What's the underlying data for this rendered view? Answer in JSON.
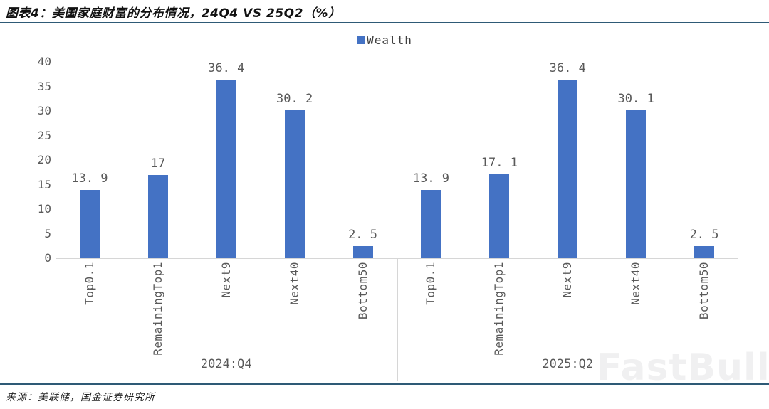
{
  "header": {
    "title": "图表4：美国家庭财富的分布情况，24Q4 VS 25Q2（%）"
  },
  "chart_data": {
    "type": "bar",
    "title": "图表4：美国家庭财富的分布情况，24Q4 VS 25Q2（%）",
    "legend": [
      "Wealth"
    ],
    "legend_position": "top-center",
    "bar_color": "#4472C4",
    "categories": [
      "Top0.1",
      "RemainingTop1",
      "Next9",
      "Next40",
      "Bottom50"
    ],
    "groups": [
      {
        "label": "2024:Q4",
        "values": [
          13.9,
          17,
          36.4,
          30.2,
          2.5
        ]
      },
      {
        "label": "2025:Q2",
        "values": [
          13.9,
          17.1,
          36.4,
          30.1,
          2.5
        ]
      }
    ],
    "ylim": [
      0,
      40
    ],
    "yticks": [
      0,
      5,
      10,
      15,
      20,
      25,
      30,
      35,
      40
    ],
    "grid": false,
    "axis_color": "#d6d6d6",
    "text_color": "#595959"
  },
  "footer": {
    "source": "来源：美联储，国金证券研究所"
  },
  "watermark": "FastBull"
}
